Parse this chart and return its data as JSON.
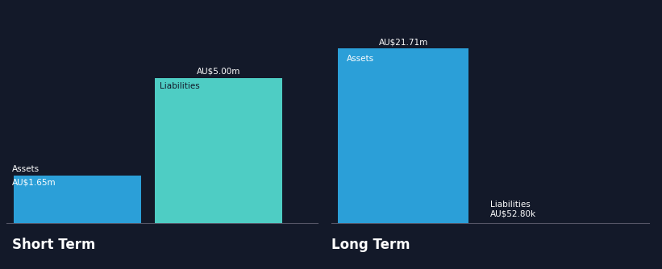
{
  "bg_color": "#131929",
  "short_term_label": "Short Term",
  "long_term_label": "Long Term",
  "short_assets_value": 1.65,
  "short_assets_label": "Assets",
  "short_assets_value_label": "AU$1.65m",
  "short_liabilities_value": 5.0,
  "short_liabilities_label": "Liabilities",
  "short_liabilities_value_label": "AU$5.00m",
  "long_assets_value": 21.71,
  "long_assets_label": "Assets",
  "long_assets_value_label": "AU$21.71m",
  "long_liabilities_value": 0.0528,
  "long_liabilities_label": "Liabilities",
  "long_liabilities_value_label": "AU$52.80k",
  "assets_color": "#2b9fd8",
  "liabilities_color": "#4ecdc4",
  "text_color": "#ffffff",
  "section_label_fontsize": 12,
  "bar_label_fontsize": 7.5,
  "value_label_fontsize": 7.5,
  "axis_line_color": "#555566"
}
